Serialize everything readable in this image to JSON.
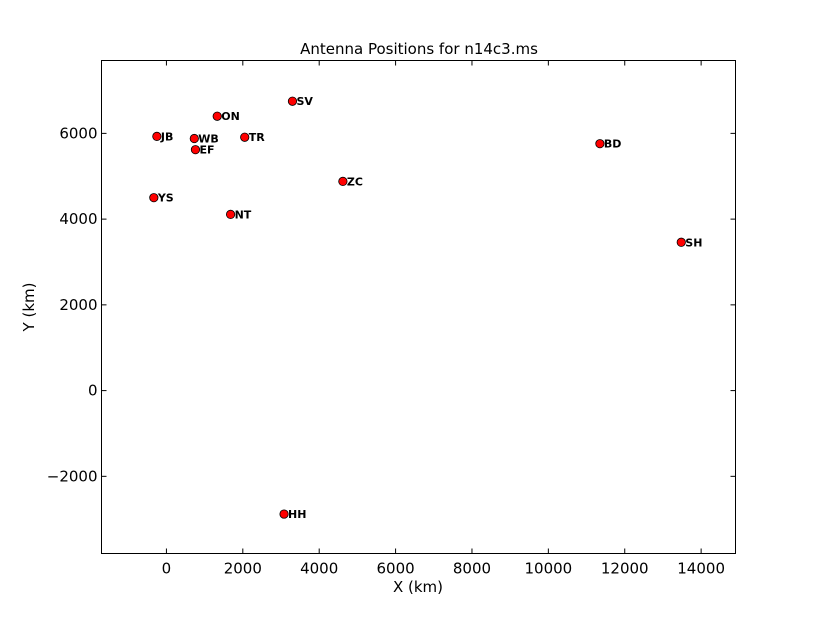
{
  "chart_data": {
    "type": "scatter",
    "title": "Antenna Positions for n14c3.ms",
    "xlabel": "X (km)",
    "ylabel": "Y (km)",
    "xlim": [
      -1700,
      14900
    ],
    "ylim": [
      -3800,
      7700
    ],
    "xticks": [
      0,
      2000,
      4000,
      6000,
      8000,
      10000,
      12000,
      14000
    ],
    "yticks": [
      -2000,
      0,
      2000,
      4000,
      6000
    ],
    "xtick_labels": [
      "0",
      "2000",
      "4000",
      "6000",
      "8000",
      "10000",
      "12000",
      "14000"
    ],
    "ytick_labels": [
      "−2000",
      "0",
      "2000",
      "4000",
      "6000"
    ],
    "grid": false,
    "marker_color": "#ff0000",
    "points": [
      {
        "label": "SV",
        "x": 3300,
        "y": 6750
      },
      {
        "label": "ON",
        "x": 1330,
        "y": 6400
      },
      {
        "label": "JB",
        "x": -250,
        "y": 5930
      },
      {
        "label": "WB",
        "x": 730,
        "y": 5880
      },
      {
        "label": "TR",
        "x": 2050,
        "y": 5910
      },
      {
        "label": "EF",
        "x": 760,
        "y": 5620
      },
      {
        "label": "YS",
        "x": -330,
        "y": 4500
      },
      {
        "label": "NT",
        "x": 1680,
        "y": 4110
      },
      {
        "label": "ZC",
        "x": 4620,
        "y": 4880
      },
      {
        "label": "BD",
        "x": 11350,
        "y": 5760
      },
      {
        "label": "SH",
        "x": 13480,
        "y": 3460
      },
      {
        "label": "HH",
        "x": 3080,
        "y": -2880
      }
    ]
  }
}
